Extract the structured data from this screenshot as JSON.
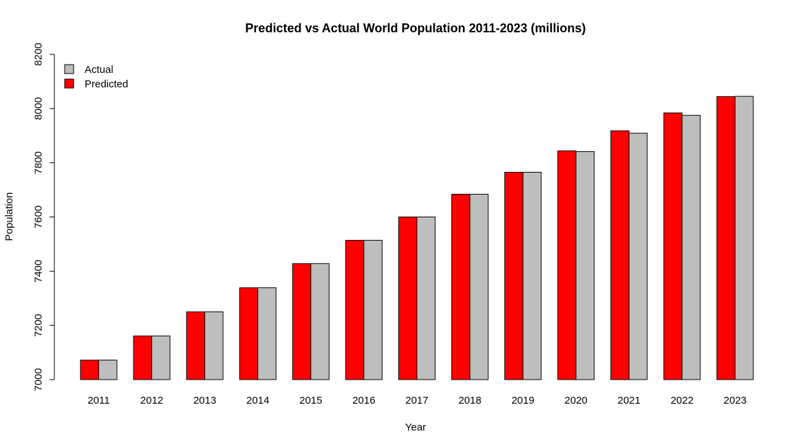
{
  "chart_data": {
    "type": "bar",
    "title": "Predicted vs Actual World Population 2011-2023 (millions)",
    "xlabel": "Year",
    "ylabel": "Population",
    "categories": [
      "2011",
      "2012",
      "2013",
      "2014",
      "2015",
      "2016",
      "2017",
      "2018",
      "2019",
      "2020",
      "2021",
      "2022",
      "2023"
    ],
    "series": [
      {
        "name": "Predicted",
        "color": "#FF0000",
        "values": [
          7072,
          7161,
          7250,
          7339,
          7428,
          7514,
          7600,
          7684,
          7765,
          7844,
          7918,
          7984,
          8044
        ]
      },
      {
        "name": "Actual",
        "color": "#BEBEBE",
        "values": [
          7072,
          7161,
          7250,
          7339,
          7428,
          7514,
          7600,
          7684,
          7765,
          7841,
          7909,
          7975,
          8045
        ]
      }
    ],
    "ylim": [
      7000,
      8200
    ],
    "yticks": [
      7000,
      7200,
      7400,
      7600,
      7800,
      8000,
      8200
    ],
    "legend": {
      "position": "top-left",
      "items": [
        {
          "label": "Actual",
          "color": "#BEBEBE"
        },
        {
          "label": "Predicted",
          "color": "#FF0000"
        }
      ]
    },
    "grid": false
  }
}
